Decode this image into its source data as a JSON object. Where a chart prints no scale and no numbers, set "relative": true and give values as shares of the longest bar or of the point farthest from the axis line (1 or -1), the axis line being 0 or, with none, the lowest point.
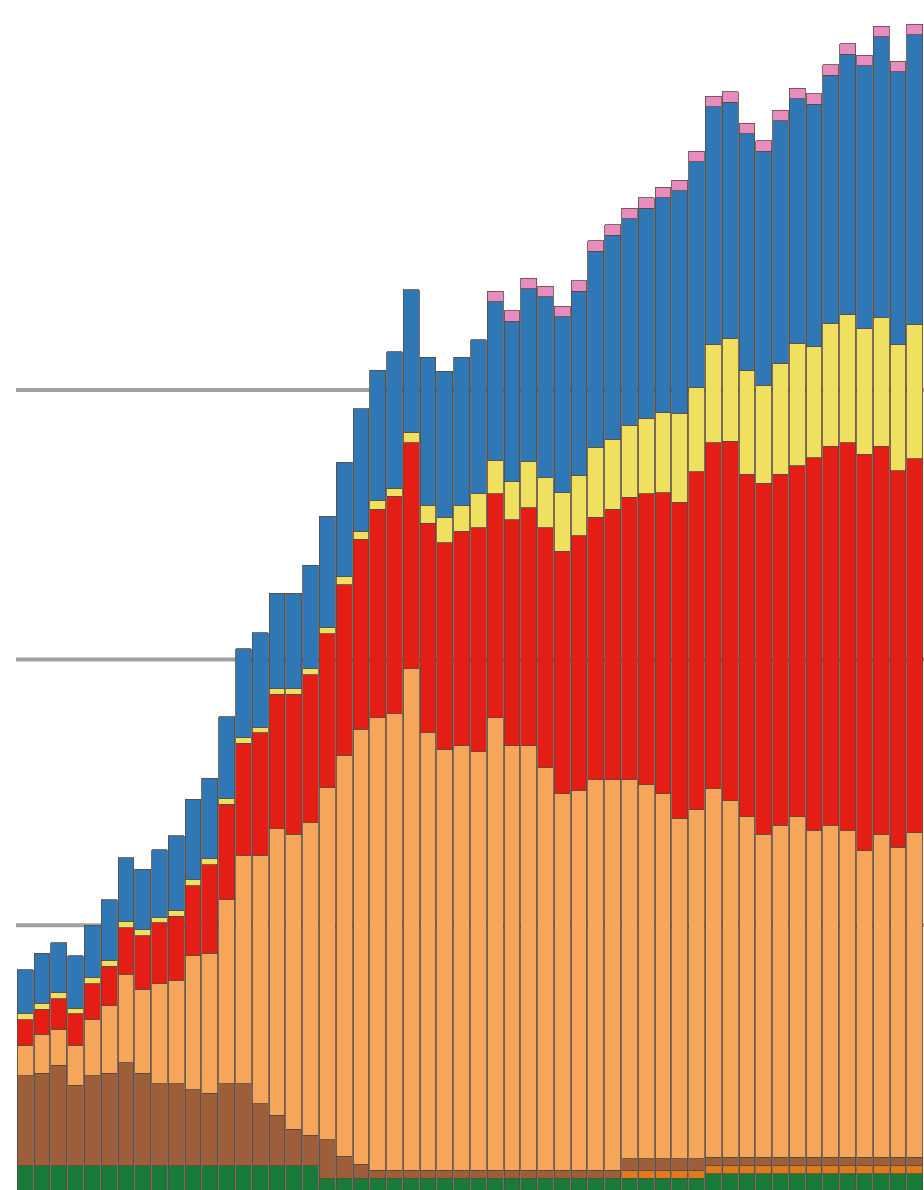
{
  "chart_data": {
    "type": "bar",
    "stacked": true,
    "relative": true,
    "categories": [
      null,
      null,
      null,
      null,
      null,
      null,
      null,
      null,
      null,
      null,
      null,
      null,
      null,
      null,
      null,
      null,
      null,
      null,
      null,
      null,
      null,
      null,
      null,
      null,
      null,
      null,
      null,
      null,
      null,
      null,
      null,
      null,
      null,
      null,
      null,
      null,
      null,
      null,
      null,
      null,
      null,
      null,
      null,
      null,
      null,
      null,
      null,
      null,
      null,
      null,
      null,
      null,
      null,
      null
    ],
    "series": [
      {
        "color": "#1a7a3a",
        "values": [
          0.021,
          0.021,
          0.021,
          0.021,
          0.021,
          0.021,
          0.021,
          0.021,
          0.021,
          0.021,
          0.021,
          0.021,
          0.021,
          0.021,
          0.021,
          0.021,
          0.021,
          0.021,
          0.01,
          0.01,
          0.01,
          0.01,
          0.01,
          0.01,
          0.01,
          0.01,
          0.01,
          0.01,
          0.01,
          0.01,
          0.01,
          0.01,
          0.01,
          0.01,
          0.01,
          0.01,
          0.01,
          0.01,
          0.01,
          0.01,
          0.01,
          0.014,
          0.014,
          0.014,
          0.014,
          0.014,
          0.014,
          0.014,
          0.014,
          0.014,
          0.014,
          0.014,
          0.014,
          0.014
        ]
      },
      {
        "color": "#e07b1a",
        "values": [
          null,
          null,
          null,
          null,
          null,
          null,
          null,
          null,
          null,
          null,
          null,
          null,
          null,
          null,
          null,
          null,
          null,
          null,
          null,
          null,
          null,
          null,
          null,
          null,
          null,
          null,
          null,
          null,
          null,
          null,
          null,
          null,
          null,
          null,
          null,
          null,
          0.007,
          0.007,
          0.007,
          0.007,
          0.007,
          0.007,
          0.007,
          0.007,
          0.007,
          0.007,
          0.007,
          0.007,
          0.007,
          0.007,
          0.007,
          0.007,
          0.007,
          0.007
        ]
      },
      {
        "color": "#9c5f3a",
        "values": [
          0.077,
          0.079,
          0.086,
          0.069,
          0.077,
          0.079,
          0.088,
          0.079,
          0.07,
          0.07,
          0.065,
          0.062,
          0.07,
          0.07,
          0.053,
          0.043,
          0.031,
          0.026,
          0.033,
          0.019,
          0.012,
          0.007,
          0.007,
          0.007,
          0.007,
          0.007,
          0.007,
          0.007,
          0.007,
          0.007,
          0.007,
          0.007,
          0.007,
          0.007,
          0.007,
          0.007,
          0.01,
          0.01,
          0.01,
          0.01,
          0.01,
          0.007,
          0.007,
          0.007,
          0.007,
          0.007,
          0.007,
          0.007,
          0.007,
          0.007,
          0.007,
          0.007,
          0.007,
          0.007
        ]
      },
      {
        "color": "#f5a65b",
        "values": [
          0.026,
          0.033,
          0.031,
          0.034,
          0.048,
          0.058,
          0.076,
          0.072,
          0.086,
          0.089,
          0.115,
          0.12,
          0.158,
          0.196,
          0.213,
          0.246,
          0.253,
          0.268,
          0.302,
          0.344,
          0.373,
          0.388,
          0.392,
          0.43,
          0.375,
          0.361,
          0.364,
          0.359,
          0.388,
          0.364,
          0.364,
          0.345,
          0.323,
          0.326,
          0.335,
          0.335,
          0.325,
          0.321,
          0.313,
          0.292,
          0.299,
          0.316,
          0.306,
          0.292,
          0.277,
          0.285,
          0.292,
          0.28,
          0.285,
          0.28,
          0.263,
          0.277,
          0.266,
          0.279
        ]
      },
      {
        "color": "#e41e14",
        "values": [
          0.022,
          0.022,
          0.026,
          0.027,
          0.031,
          0.034,
          0.04,
          0.046,
          0.052,
          0.055,
          0.06,
          0.076,
          0.082,
          0.096,
          0.105,
          0.115,
          0.12,
          0.127,
          0.132,
          0.146,
          0.163,
          0.179,
          0.186,
          0.194,
          0.18,
          0.177,
          0.184,
          0.192,
          0.192,
          0.194,
          0.204,
          0.206,
          0.208,
          0.218,
          0.225,
          0.232,
          0.242,
          0.249,
          0.258,
          0.271,
          0.29,
          0.297,
          0.308,
          0.294,
          0.301,
          0.301,
          0.301,
          0.32,
          0.325,
          0.333,
          0.34,
          0.333,
          0.323,
          0.32
        ]
      },
      {
        "color": "#f0e060",
        "values": [
          0.005,
          0.005,
          0.005,
          0.005,
          0.005,
          0.005,
          0.005,
          0.005,
          0.005,
          0.005,
          0.005,
          0.005,
          0.005,
          0.005,
          0.005,
          0.005,
          0.005,
          0.005,
          0.005,
          0.007,
          0.007,
          0.007,
          0.007,
          0.009,
          0.015,
          0.022,
          0.022,
          0.029,
          0.029,
          0.033,
          0.04,
          0.043,
          0.05,
          0.052,
          0.06,
          0.06,
          0.062,
          0.065,
          0.069,
          0.076,
          0.072,
          0.084,
          0.088,
          0.089,
          0.084,
          0.095,
          0.105,
          0.095,
          0.105,
          0.11,
          0.108,
          0.11,
          0.108,
          0.115
        ]
      },
      {
        "color": "#2f78b5",
        "values": [
          0.038,
          0.043,
          0.043,
          0.045,
          0.045,
          0.052,
          0.055,
          0.052,
          0.058,
          0.064,
          0.069,
          0.069,
          0.07,
          0.076,
          0.081,
          0.082,
          0.082,
          0.089,
          0.096,
          0.098,
          0.105,
          0.112,
          0.117,
          0.122,
          0.127,
          0.125,
          0.127,
          0.132,
          0.136,
          0.137,
          0.148,
          0.155,
          0.151,
          0.158,
          0.168,
          0.175,
          0.177,
          0.18,
          0.184,
          0.191,
          0.194,
          0.204,
          0.203,
          0.203,
          0.201,
          0.208,
          0.21,
          0.208,
          0.213,
          0.223,
          0.225,
          0.241,
          0.234,
          0.249
        ]
      },
      {
        "color": "#e88cc0",
        "values": [
          null,
          null,
          null,
          null,
          null,
          null,
          null,
          null,
          null,
          null,
          null,
          null,
          null,
          null,
          null,
          null,
          null,
          null,
          null,
          null,
          null,
          null,
          null,
          null,
          null,
          null,
          null,
          null,
          0.009,
          0.009,
          0.009,
          0.009,
          0.009,
          0.009,
          0.009,
          0.009,
          0.009,
          0.009,
          0.009,
          0.009,
          0.009,
          0.009,
          0.009,
          0.009,
          0.009,
          0.009,
          0.009,
          0.009,
          0.009,
          0.009,
          0.009,
          0.009,
          0.009,
          0.009
        ]
      }
    ],
    "ref_lines": [
      {
        "axis": "y",
        "value": 0.227,
        "color": "#a0a0a0"
      },
      {
        "axis": "y",
        "value": 0.455,
        "color": "#a0a0a0"
      },
      {
        "axis": "y",
        "value": 0.686,
        "color": "#a0a0a0"
      }
    ]
  }
}
